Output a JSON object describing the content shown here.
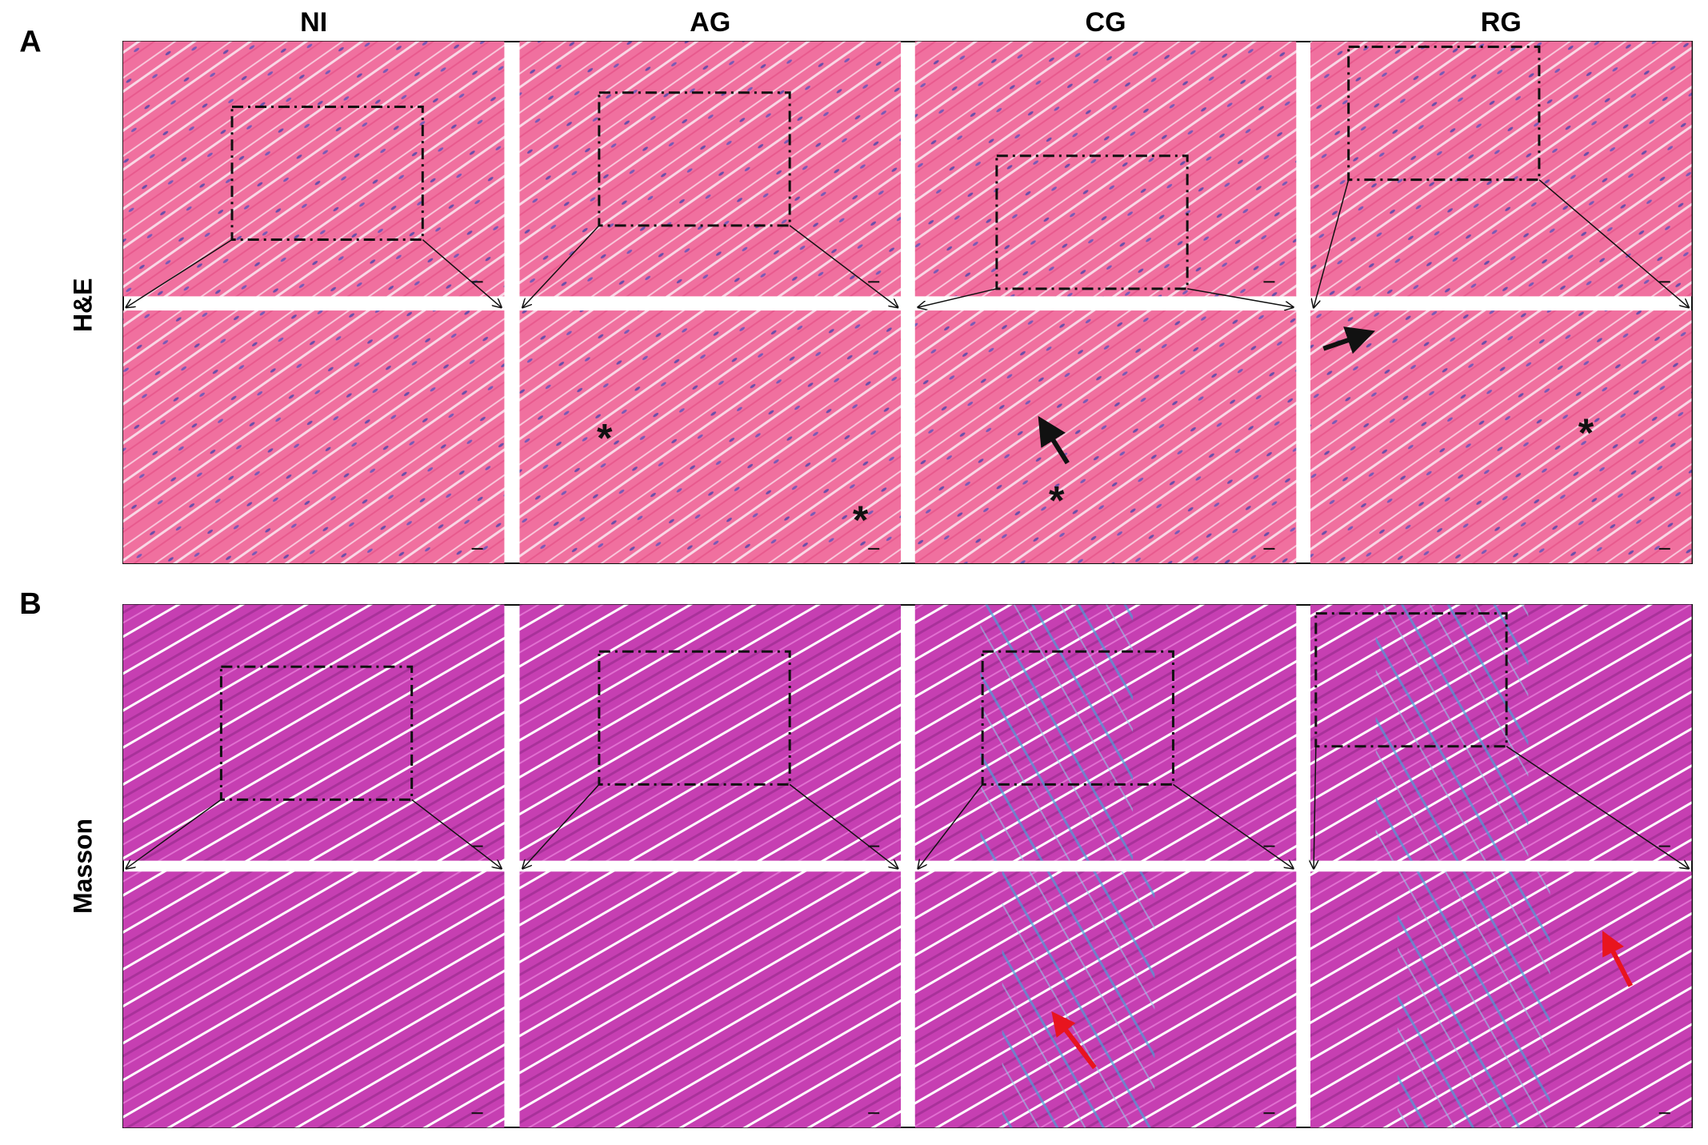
{
  "figure": {
    "columns": [
      "NI",
      "AG",
      "CG",
      "RG"
    ],
    "panels": [
      {
        "letter": "A",
        "stain": "H&E"
      },
      {
        "letter": "B",
        "stain": "Masson"
      }
    ],
    "asterisk": "*"
  }
}
